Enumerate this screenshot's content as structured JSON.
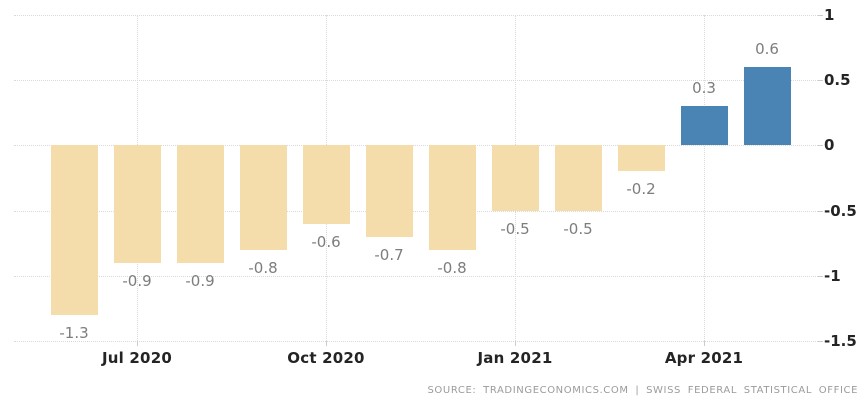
{
  "chart_data": {
    "type": "bar",
    "title": "",
    "values": [
      -1.3,
      -0.9,
      -0.9,
      -0.8,
      -0.6,
      -0.7,
      -0.8,
      -0.5,
      -0.5,
      -0.2,
      0.3,
      0.6
    ],
    "bar_labels": [
      "-1.3",
      "-0.9",
      "-0.9",
      "-0.8",
      "-0.6",
      "-0.7",
      "-0.8",
      "-0.5",
      "-0.5",
      "-0.2",
      "0.3",
      "0.6"
    ],
    "x_ticks": [
      {
        "label": "Jul 2020",
        "bar_index": 1
      },
      {
        "label": "Oct 2020",
        "bar_index": 4
      },
      {
        "label": "Jan 2021",
        "bar_index": 7
      },
      {
        "label": "Apr 2021",
        "bar_index": 10
      }
    ],
    "y_ticks": [
      {
        "value": 1,
        "label": "1"
      },
      {
        "value": 0.5,
        "label": "0.5"
      },
      {
        "value": 0,
        "label": "0"
      },
      {
        "value": -0.5,
        "label": "-0.5"
      },
      {
        "value": -1,
        "label": "-1"
      },
      {
        "value": -1.5,
        "label": "-1.5"
      }
    ],
    "ylim": [
      -1.5,
      1
    ],
    "grid": true,
    "legend": "none",
    "colors": {
      "positive_bar": "#4984b4",
      "negative_bar": "#f5dcab",
      "grid": "#d9d9d9",
      "value_label": "#7d7d7d",
      "axis_label": "#242424",
      "source_text": "#9b9b9b"
    },
    "source": "SOURCE: TRADINGECONOMICS.COM | SWISS FEDERAL STATISTICAL OFFICE"
  }
}
